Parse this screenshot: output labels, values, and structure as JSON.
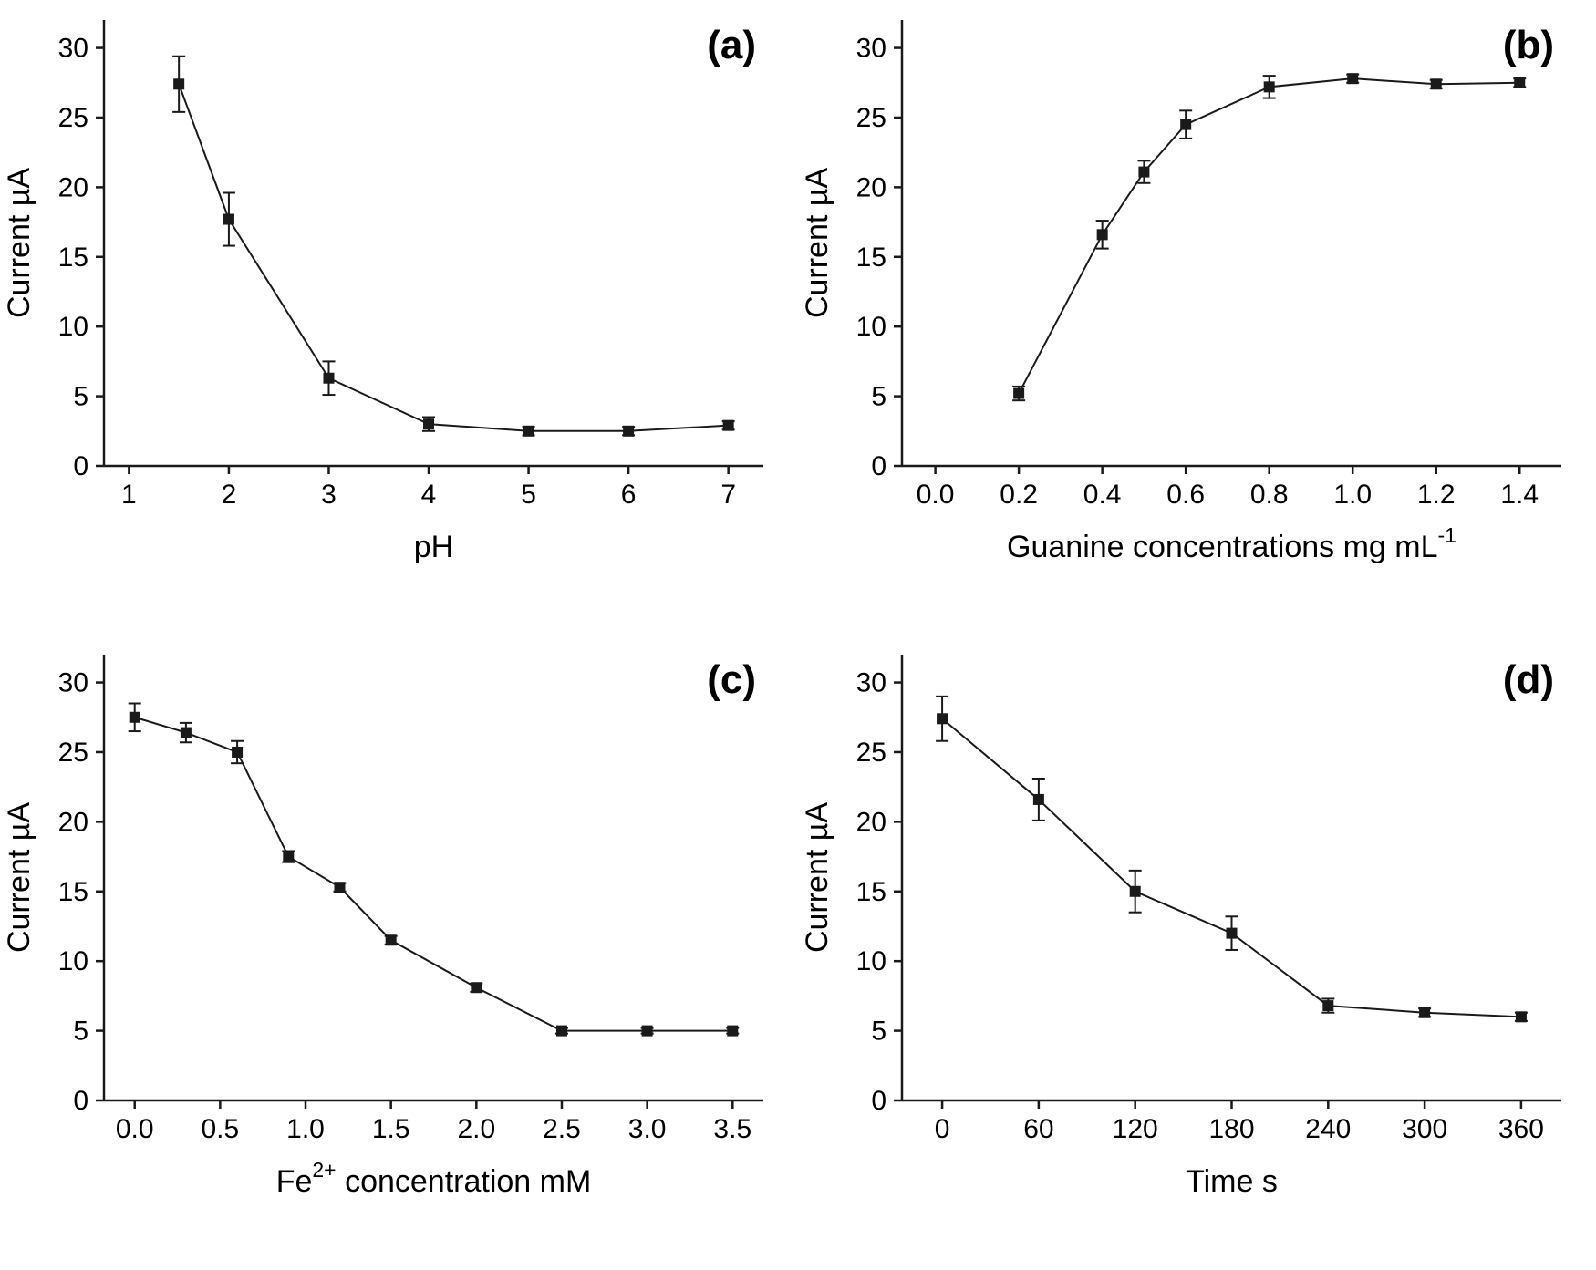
{
  "page": {
    "background": "#ffffff",
    "line_color": "#1a1a1a",
    "marker": "square"
  },
  "chart_data": [
    {
      "id": "a",
      "type": "line",
      "panel_label": "(a)",
      "title": "",
      "ylabel": "Current µA",
      "xlabel_segments": [
        {
          "t": "pH"
        }
      ],
      "xlim": [
        0.75,
        7.35
      ],
      "ylim": [
        0,
        32
      ],
      "xtick_values": [
        1,
        2,
        3,
        4,
        5,
        6,
        7
      ],
      "xtick_labels": [
        "1",
        "2",
        "3",
        "4",
        "5",
        "6",
        "7"
      ],
      "ytick_values": [
        0,
        5,
        10,
        15,
        20,
        25,
        30
      ],
      "ytick_labels": [
        "0",
        "5",
        "10",
        "15",
        "20",
        "25",
        "30"
      ],
      "x": [
        1.5,
        2,
        3,
        4,
        5,
        6,
        7
      ],
      "y": [
        27.4,
        17.7,
        6.3,
        3.0,
        2.5,
        2.5,
        2.9
      ],
      "err": [
        2.0,
        1.9,
        1.2,
        0.5,
        0.3,
        0.3,
        0.3
      ]
    },
    {
      "id": "b",
      "type": "line",
      "panel_label": "(b)",
      "title": "",
      "ylabel": "Current µA",
      "xlabel_segments": [
        {
          "t": "Guanine concentrations mg mL"
        },
        {
          "t": "-1",
          "sup": true
        }
      ],
      "xlim": [
        -0.08,
        1.5
      ],
      "ylim": [
        0,
        32
      ],
      "xtick_values": [
        0.0,
        0.2,
        0.4,
        0.6,
        0.8,
        1.0,
        1.2,
        1.4
      ],
      "xtick_labels": [
        "0.0",
        "0.2",
        "0.4",
        "0.6",
        "0.8",
        "1.0",
        "1.2",
        "1.4"
      ],
      "ytick_values": [
        0,
        5,
        10,
        15,
        20,
        25,
        30
      ],
      "ytick_labels": [
        "0",
        "5",
        "10",
        "15",
        "20",
        "25",
        "30"
      ],
      "x": [
        0.2,
        0.4,
        0.5,
        0.6,
        0.8,
        1.0,
        1.2,
        1.4
      ],
      "y": [
        5.2,
        16.6,
        21.1,
        24.5,
        27.2,
        27.8,
        27.4,
        27.5
      ],
      "err": [
        0.5,
        1.0,
        0.8,
        1.0,
        0.8,
        0.3,
        0.3,
        0.3
      ]
    },
    {
      "id": "c",
      "type": "line",
      "panel_label": "(c)",
      "title": "",
      "ylabel": "Current µA",
      "xlabel_segments": [
        {
          "t": "Fe"
        },
        {
          "t": "2+",
          "sup": true
        },
        {
          "t": " concentration mM"
        }
      ],
      "xlim": [
        -0.18,
        3.68
      ],
      "ylim": [
        0,
        32
      ],
      "xtick_values": [
        0.0,
        0.5,
        1.0,
        1.5,
        2.0,
        2.5,
        3.0,
        3.5
      ],
      "xtick_labels": [
        "0.0",
        "0.5",
        "1.0",
        "1.5",
        "2.0",
        "2.5",
        "3.0",
        "3.5"
      ],
      "ytick_values": [
        0,
        5,
        10,
        15,
        20,
        25,
        30
      ],
      "ytick_labels": [
        "0",
        "5",
        "10",
        "15",
        "20",
        "25",
        "30"
      ],
      "x": [
        0.0,
        0.3,
        0.6,
        0.9,
        1.2,
        1.5,
        2.0,
        2.5,
        3.0,
        3.5
      ],
      "y": [
        27.5,
        26.4,
        25.0,
        17.5,
        15.3,
        11.5,
        8.1,
        5.0,
        5.0,
        5.0
      ],
      "err": [
        1.0,
        0.7,
        0.8,
        0.4,
        0.3,
        0.3,
        0.3,
        0.2,
        0.2,
        0.2
      ]
    },
    {
      "id": "d",
      "type": "line",
      "panel_label": "(d)",
      "title": "",
      "ylabel": "Current µA",
      "xlabel_segments": [
        {
          "t": "Time s"
        }
      ],
      "xlim": [
        -25,
        385
      ],
      "ylim": [
        0,
        32
      ],
      "xtick_values": [
        0,
        60,
        120,
        180,
        240,
        300,
        360
      ],
      "xtick_labels": [
        "0",
        "60",
        "120",
        "180",
        "240",
        "300",
        "360"
      ],
      "ytick_values": [
        0,
        5,
        10,
        15,
        20,
        25,
        30
      ],
      "ytick_labels": [
        "0",
        "5",
        "10",
        "15",
        "20",
        "25",
        "30"
      ],
      "x": [
        0,
        60,
        120,
        180,
        240,
        300,
        360
      ],
      "y": [
        27.4,
        21.6,
        15.0,
        12.0,
        6.8,
        6.3,
        6.0
      ],
      "err": [
        1.6,
        1.5,
        1.5,
        1.2,
        0.5,
        0.3,
        0.3
      ]
    }
  ]
}
